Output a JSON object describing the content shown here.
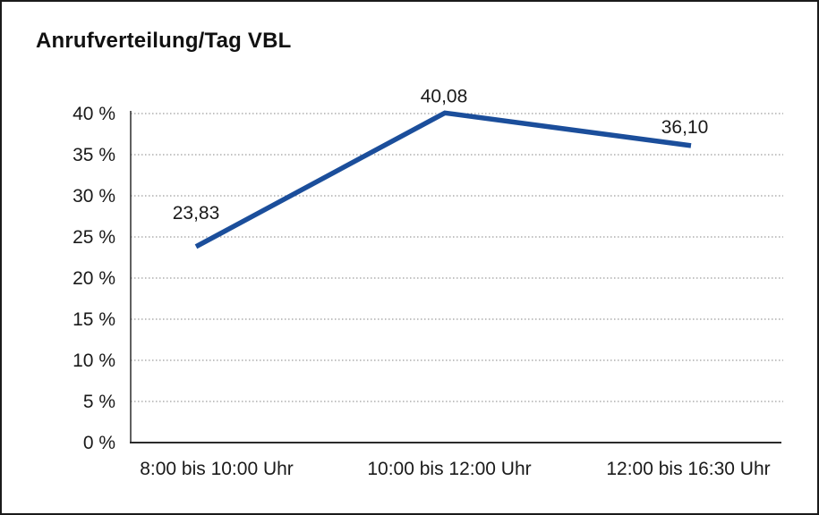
{
  "chart_data": {
    "type": "line",
    "title": "Anrufverteilung/Tag VBL",
    "categories": [
      "8:00 bis 10:00 Uhr",
      "10:00 bis 12:00 Uhr",
      "12:00 bis 16:30 Uhr"
    ],
    "values": [
      23.83,
      40.08,
      36.1
    ],
    "data_labels": [
      "23,83",
      "40,08",
      "36,10"
    ],
    "xlabel": "",
    "ylabel": "",
    "ylim": [
      0,
      40
    ],
    "ytick_step": 5,
    "ytick_labels": [
      "0 %",
      "5 %",
      "10 %",
      "15 %",
      "20 %",
      "25 %",
      "30 %",
      "35 %",
      "40 %"
    ],
    "grid": "horizontal-dotted",
    "legend_position": "none",
    "colors": {
      "line": "#1b4e9b",
      "text": "#1a1a1a",
      "gridline": "#858585",
      "axis": "#2b2b2b",
      "background": "#ffffff",
      "border": "#1a1a1a"
    }
  }
}
